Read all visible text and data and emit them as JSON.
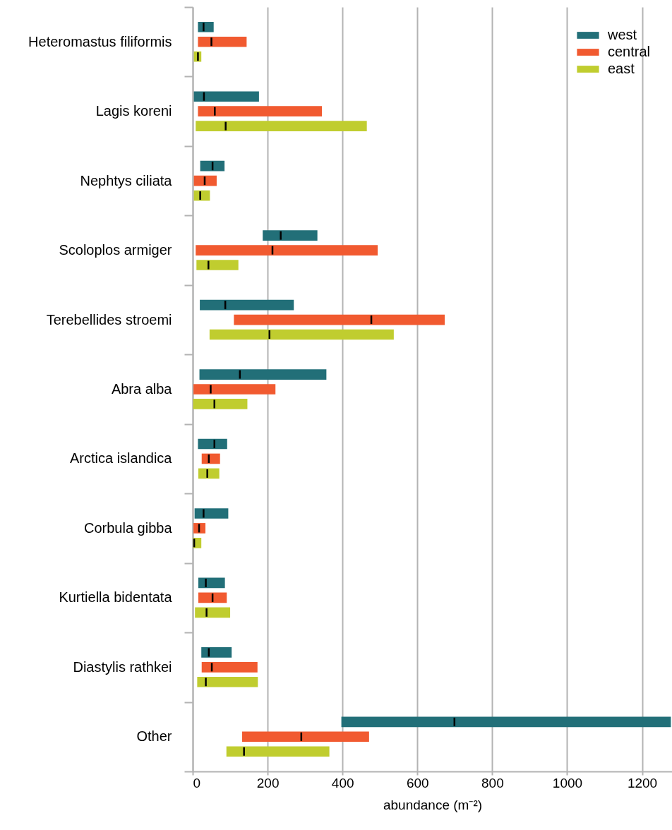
{
  "chart_data": {
    "type": "box",
    "orientation": "horizontal",
    "xlabel": "abundance (m⁻²)",
    "categories": [
      "Heteromastus filiformis",
      "Lagis koreni",
      "Nephtys ciliata",
      "Scoloplos armiger",
      "Terebellides stroemi",
      "Abra alba",
      "Arctica islandica",
      "Corbula gibba",
      "Kurtiella bidentata",
      "Diastylis rathkei",
      "Other"
    ],
    "xlim": [
      0,
      1280
    ],
    "xticks": [
      0,
      200,
      400,
      600,
      800,
      1000,
      1200
    ],
    "grid": "x",
    "legend": "top right",
    "series": [
      {
        "name": "west",
        "color": "#226f78",
        "boxes": [
          {
            "low": 14,
            "q1": 14,
            "median": 29,
            "q3": 56,
            "high": 56
          },
          {
            "low": 3,
            "q1": 3,
            "median": 30,
            "q3": 177,
            "high": 177
          },
          {
            "low": 20,
            "q1": 20,
            "median": 53,
            "q3": 85,
            "high": 85
          },
          {
            "low": 187,
            "q1": 187,
            "median": 235,
            "q3": 333,
            "high": 333
          },
          {
            "low": 19,
            "q1": 19,
            "median": 87,
            "q3": 270,
            "high": 270
          },
          {
            "low": 18,
            "q1": 18,
            "median": 126,
            "q3": 357,
            "high": 357
          },
          {
            "low": 14,
            "q1": 14,
            "median": 58,
            "q3": 92,
            "high": 92
          },
          {
            "low": 5,
            "q1": 5,
            "median": 29,
            "q3": 95,
            "high": 95
          },
          {
            "low": 15,
            "q1": 15,
            "median": 35,
            "q3": 86,
            "high": 86
          },
          {
            "low": 23,
            "q1": 23,
            "median": 43,
            "q3": 104,
            "high": 104
          },
          {
            "low": 397,
            "q1": 397,
            "median": 699,
            "q3": 1277,
            "high": 1277
          }
        ]
      },
      {
        "name": "central",
        "color": "#f15a30",
        "boxes": [
          {
            "low": 14,
            "q1": 14,
            "median": 50,
            "q3": 144,
            "high": 144
          },
          {
            "low": 14,
            "q1": 14,
            "median": 59,
            "q3": 345,
            "high": 345
          },
          {
            "low": 3,
            "q1": 3,
            "median": 32,
            "q3": 64,
            "high": 64
          },
          {
            "low": 8,
            "q1": 8,
            "median": 213,
            "q3": 494,
            "high": 494
          },
          {
            "low": 110,
            "q1": 110,
            "median": 477,
            "q3": 673,
            "high": 673
          },
          {
            "low": 2,
            "q1": 2,
            "median": 48,
            "q3": 221,
            "high": 221
          },
          {
            "low": 24,
            "q1": 24,
            "median": 43,
            "q3": 73,
            "high": 73
          },
          {
            "low": 2,
            "q1": 2,
            "median": 17,
            "q3": 34,
            "high": 34
          },
          {
            "low": 15,
            "q1": 15,
            "median": 53,
            "q3": 91,
            "high": 91
          },
          {
            "low": 24,
            "q1": 24,
            "median": 51,
            "q3": 173,
            "high": 173
          },
          {
            "low": 132,
            "q1": 132,
            "median": 290,
            "q3": 471,
            "high": 471
          }
        ]
      },
      {
        "name": "east",
        "color": "#c0cd2f",
        "boxes": [
          {
            "low": 3,
            "q1": 3,
            "median": 14,
            "q3": 23,
            "high": 23
          },
          {
            "low": 8,
            "q1": 8,
            "median": 88,
            "q3": 465,
            "high": 465
          },
          {
            "low": 3,
            "q1": 3,
            "median": 20,
            "q3": 46,
            "high": 46
          },
          {
            "low": 10,
            "q1": 10,
            "median": 42,
            "q3": 122,
            "high": 122
          },
          {
            "low": 45,
            "q1": 45,
            "median": 205,
            "q3": 537,
            "high": 537
          },
          {
            "low": 1,
            "q1": 1,
            "median": 58,
            "q3": 146,
            "high": 146
          },
          {
            "low": 15,
            "q1": 15,
            "median": 39,
            "q3": 71,
            "high": 71
          },
          {
            "low": 1,
            "q1": 1,
            "median": 4,
            "q3": 23,
            "high": 23
          },
          {
            "low": 6,
            "q1": 6,
            "median": 37,
            "q3": 100,
            "high": 100
          },
          {
            "low": 12,
            "q1": 12,
            "median": 35,
            "q3": 174,
            "high": 174
          },
          {
            "low": 90,
            "q1": 90,
            "median": 137,
            "q3": 365,
            "high": 365
          }
        ]
      }
    ]
  }
}
